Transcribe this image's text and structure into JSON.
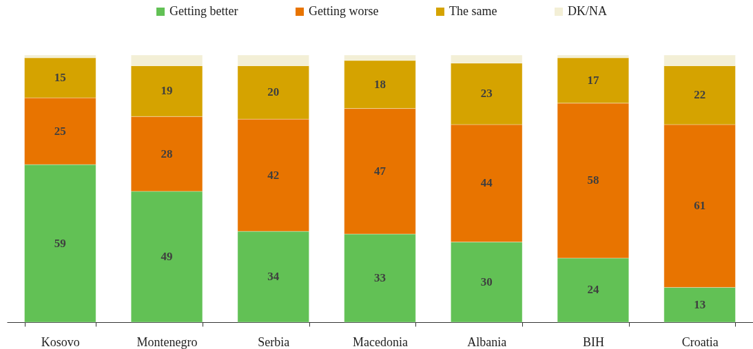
{
  "chart_data": {
    "type": "bar",
    "stacked": true,
    "legend": "top",
    "categories": [
      "Kosovo",
      "Montenegro",
      "Serbia",
      "Macedonia",
      "Albania",
      "BIH",
      "Croatia"
    ],
    "series": [
      {
        "name": "Getting better",
        "color": "#62c155",
        "values": [
          59,
          49,
          34,
          33,
          30,
          24,
          13
        ],
        "value_labels": [
          "59",
          "49",
          "34",
          "33",
          "30",
          "24",
          "13"
        ]
      },
      {
        "name": "Getting worse",
        "color": "#e87400",
        "values": [
          25,
          28,
          42,
          47,
          44,
          58,
          61
        ],
        "value_labels": [
          "25",
          "28",
          "42",
          "47",
          "44",
          "58",
          "61"
        ]
      },
      {
        "name": "The same",
        "color": "#d5a300",
        "values": [
          15,
          19,
          20,
          18,
          23,
          17,
          22
        ],
        "value_labels": [
          "15",
          "19",
          "20",
          "18",
          "23",
          "17",
          "22"
        ]
      },
      {
        "name": "DK/NA",
        "color": "#f3efd6",
        "values": [
          1,
          4,
          4,
          2,
          3,
          1,
          4
        ]
      }
    ]
  }
}
